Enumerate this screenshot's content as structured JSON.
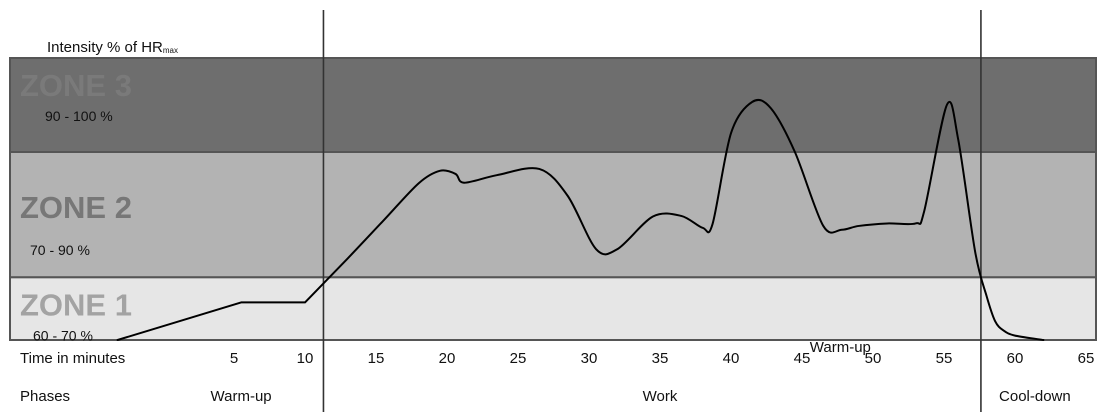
{
  "chart_data": {
    "type": "line",
    "ylabel_prefix": "Intensity % of HR",
    "ylabel_sub": "max",
    "xlabel": "Time in minutes",
    "phases_label": "Phases",
    "xlim": [
      -8,
      65
    ],
    "ylim": [
      50,
      105
    ],
    "xticks": [
      5,
      10,
      15,
      20,
      25,
      30,
      35,
      40,
      45,
      50,
      55,
      60,
      65
    ],
    "zones": [
      {
        "name": "ZONE 3",
        "range": "90 - 100 %",
        "min": 90,
        "max": 105,
        "color": "#6e6e6e",
        "text_color": "#7a7a7a"
      },
      {
        "name": "ZONE 2",
        "range": "70 - 90 %",
        "min": 70,
        "max": 90,
        "color": "#b3b3b3",
        "text_color": "#777777"
      },
      {
        "name": "ZONE 1",
        "range": "60 - 70 %",
        "min": 60,
        "max": 70,
        "color": "#e6e6e6",
        "text_color": "#a3a3a3"
      }
    ],
    "phase_boundaries": [
      11.3,
      57.6
    ],
    "phases": [
      {
        "name": "Warm-up",
        "x": 5.5
      },
      {
        "name": "Work",
        "x": 35
      },
      {
        "name": "Cool-down",
        "x": 61.4
      }
    ],
    "stray_label": {
      "text": "Warm-up",
      "x": 47.7
    },
    "series": [
      {
        "x": [
          -3.2,
          5.5,
          10.0,
          13.0,
          15.5,
          18.0,
          19.5,
          20.6,
          21.2,
          23.5,
          26.5,
          28.5,
          30.5,
          32.0,
          34.5,
          36.5,
          38.0,
          38.7,
          40.0,
          41.5,
          42.8,
          44.5,
          46.5,
          47.8,
          49.0,
          51.0,
          53.0,
          53.6,
          55.2,
          56.0,
          57.2,
          58.0,
          58.6,
          59.2,
          60.0,
          62.0
        ],
        "y": [
          60.0,
          66.0,
          66.0,
          73.0,
          79.0,
          85.0,
          87.0,
          86.5,
          85.1,
          86.3,
          87.3,
          83.0,
          74.5,
          74.5,
          79.7,
          79.8,
          77.9,
          78.5,
          93.0,
          98.0,
          97.0,
          90.0,
          78.2,
          77.6,
          78.2,
          78.6,
          78.6,
          80.5,
          97.5,
          92.0,
          74.0,
          67.0,
          63.0,
          61.5,
          60.7,
          60.0
        ]
      }
    ]
  }
}
